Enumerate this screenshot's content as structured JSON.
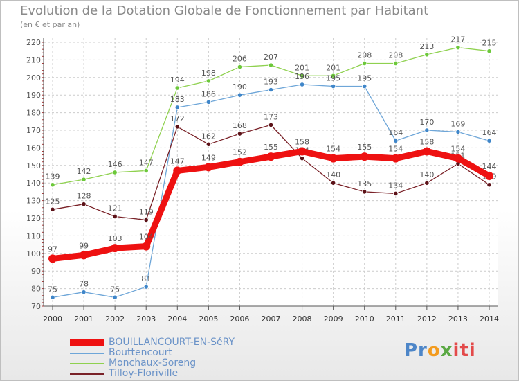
{
  "chart_data": {
    "type": "line",
    "title": "Evolution de la Dotation Globale de Fonctionnement par Habitant",
    "subtitle": "(en € et par an)",
    "xlabel": "",
    "ylabel": "",
    "ylim": [
      70,
      220
    ],
    "yticks": [
      70,
      80,
      90,
      100,
      110,
      120,
      130,
      140,
      150,
      160,
      170,
      180,
      190,
      200,
      210,
      220
    ],
    "grid": true,
    "legend_position": "bottom-left",
    "x": [
      "2000",
      "2001",
      "2002",
      "2003",
      "2004",
      "2005",
      "2006",
      "2007",
      "2008",
      "2009",
      "2010",
      "2011",
      "2012",
      "2013",
      "2014"
    ],
    "series": [
      {
        "name": "Monchaux-Soreng",
        "color": "#8fd14f",
        "marker": "#6cc83a",
        "values": [
          139,
          142,
          146,
          147,
          194,
          198,
          206,
          207,
          201,
          201,
          208,
          208,
          213,
          217,
          215
        ]
      },
      {
        "name": "Bouttencourt",
        "color": "#6ea6d8",
        "marker": "#3f86c9",
        "values": [
          75,
          78,
          75,
          81,
          183,
          186,
          190,
          193,
          196,
          195,
          195,
          164,
          170,
          169,
          164
        ]
      },
      {
        "name": "Tilloy-Floriville",
        "color": "#7a2228",
        "marker": "#5c1218",
        "values": [
          125,
          128,
          121,
          119,
          172,
          162,
          168,
          173,
          154,
          140,
          135,
          134,
          140,
          151,
          139
        ]
      },
      {
        "name": "BOUILLANCOURT-EN-SéRY",
        "color": "#ee1111",
        "marker": "#ee1111",
        "values": [
          97,
          99,
          103,
          104,
          147,
          149,
          152,
          155,
          158,
          154,
          155,
          154,
          158,
          154,
          144
        ]
      }
    ],
    "legend_order": [
      "BOUILLANCOURT-EN-SéRY",
      "Bouttencourt",
      "Monchaux-Soreng",
      "Tilloy-Floriville"
    ]
  },
  "logo": {
    "text": "Proxiti",
    "part1": "Pr",
    "part2": "o",
    "part3": "x",
    "part4": "iti"
  }
}
